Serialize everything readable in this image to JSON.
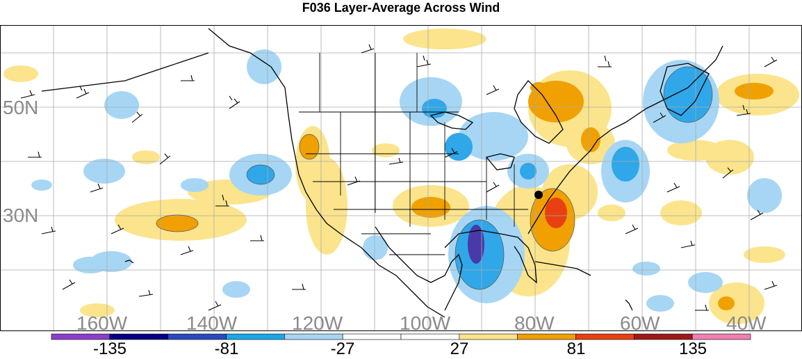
{
  "title": "F036 Layer-Average Across Wind",
  "longitude_labels": [
    "160W",
    "140W",
    "120W",
    "100W",
    "80W",
    "60W",
    "40W"
  ],
  "latitude_labels": [
    "50N",
    "30N"
  ],
  "colorbar": {
    "colors": [
      "#8b3fc9",
      "#000080",
      "#2a48c0",
      "#1aa8e8",
      "#a6d6f4",
      "#ffffff",
      "#ffffff",
      "#fbe48c",
      "#f0a000",
      "#e84010",
      "#a01818",
      "#f080b0"
    ],
    "tick_labels": [
      "-135",
      "-81",
      "-27",
      "27",
      "81",
      "135"
    ]
  },
  "colors": {
    "dark_purple": "#4a3aa8",
    "deep_blue": "#1c8cd8",
    "mid_blue": "#2fa7e8",
    "light_blue": "#a6d6f4",
    "light_yellow": "#fbe48c",
    "orange": "#f0a000",
    "red_orange": "#e84010"
  },
  "marker": {
    "type": "dot",
    "color": "#000000"
  }
}
